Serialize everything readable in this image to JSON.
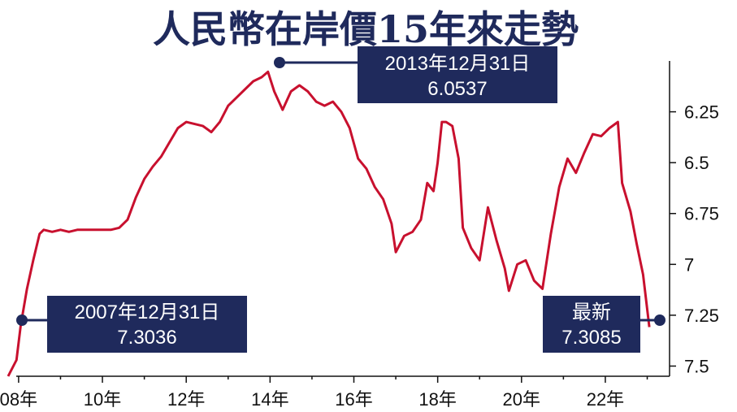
{
  "chart_data": {
    "type": "line",
    "title": "人民幣在岸價15年來走勢",
    "y_axis": {
      "ticks": [
        6.25,
        6.5,
        6.75,
        7,
        7.25,
        7.5
      ],
      "tick_labels": [
        "6.25",
        "6.5",
        "6.75",
        "7",
        "7.25",
        "7.5"
      ],
      "inverted": true,
      "range": [
        6.0,
        7.55
      ],
      "position": "right"
    },
    "x_axis": {
      "tick_labels": [
        "08年",
        "10年",
        "12年",
        "14年",
        "16年",
        "18年",
        "20年",
        "22年"
      ],
      "range": [
        2007.75,
        2023.3
      ]
    },
    "series": [
      {
        "color": "#c8102e",
        "points": [
          [
            2007.75,
            7.55
          ],
          [
            2007.95,
            7.47
          ],
          [
            2008.05,
            7.3
          ],
          [
            2008.2,
            7.12
          ],
          [
            2008.35,
            6.98
          ],
          [
            2008.5,
            6.85
          ],
          [
            2008.6,
            6.83
          ],
          [
            2008.8,
            6.84
          ],
          [
            2009.0,
            6.83
          ],
          [
            2009.2,
            6.84
          ],
          [
            2009.4,
            6.83
          ],
          [
            2009.6,
            6.83
          ],
          [
            2009.8,
            6.83
          ],
          [
            2010.0,
            6.83
          ],
          [
            2010.2,
            6.83
          ],
          [
            2010.4,
            6.82
          ],
          [
            2010.6,
            6.78
          ],
          [
            2010.8,
            6.67
          ],
          [
            2011.0,
            6.58
          ],
          [
            2011.2,
            6.52
          ],
          [
            2011.4,
            6.47
          ],
          [
            2011.6,
            6.4
          ],
          [
            2011.8,
            6.33
          ],
          [
            2012.0,
            6.3
          ],
          [
            2012.2,
            6.31
          ],
          [
            2012.4,
            6.32
          ],
          [
            2012.6,
            6.35
          ],
          [
            2012.8,
            6.3
          ],
          [
            2013.0,
            6.22
          ],
          [
            2013.2,
            6.18
          ],
          [
            2013.4,
            6.14
          ],
          [
            2013.6,
            6.1
          ],
          [
            2013.8,
            6.08
          ],
          [
            2013.95,
            6.0537
          ],
          [
            2014.1,
            6.15
          ],
          [
            2014.3,
            6.24
          ],
          [
            2014.5,
            6.15
          ],
          [
            2014.7,
            6.12
          ],
          [
            2014.9,
            6.15
          ],
          [
            2015.1,
            6.2
          ],
          [
            2015.3,
            6.22
          ],
          [
            2015.5,
            6.2
          ],
          [
            2015.7,
            6.25
          ],
          [
            2015.9,
            6.33
          ],
          [
            2016.1,
            6.48
          ],
          [
            2016.3,
            6.53
          ],
          [
            2016.5,
            6.62
          ],
          [
            2016.7,
            6.68
          ],
          [
            2016.9,
            6.8
          ],
          [
            2017.0,
            6.94
          ],
          [
            2017.2,
            6.86
          ],
          [
            2017.4,
            6.84
          ],
          [
            2017.6,
            6.78
          ],
          [
            2017.75,
            6.6
          ],
          [
            2017.9,
            6.64
          ],
          [
            2018.0,
            6.5
          ],
          [
            2018.1,
            6.3
          ],
          [
            2018.2,
            6.3
          ],
          [
            2018.35,
            6.32
          ],
          [
            2018.5,
            6.48
          ],
          [
            2018.6,
            6.82
          ],
          [
            2018.8,
            6.92
          ],
          [
            2019.0,
            6.98
          ],
          [
            2019.2,
            6.72
          ],
          [
            2019.4,
            6.88
          ],
          [
            2019.6,
            7.02
          ],
          [
            2019.7,
            7.13
          ],
          [
            2019.9,
            7.0
          ],
          [
            2020.1,
            6.98
          ],
          [
            2020.3,
            7.08
          ],
          [
            2020.5,
            7.12
          ],
          [
            2020.7,
            6.85
          ],
          [
            2020.9,
            6.62
          ],
          [
            2021.1,
            6.48
          ],
          [
            2021.3,
            6.55
          ],
          [
            2021.5,
            6.45
          ],
          [
            2021.7,
            6.36
          ],
          [
            2021.9,
            6.37
          ],
          [
            2022.1,
            6.33
          ],
          [
            2022.3,
            6.3
          ],
          [
            2022.4,
            6.6
          ],
          [
            2022.6,
            6.74
          ],
          [
            2022.75,
            6.9
          ],
          [
            2022.9,
            7.05
          ],
          [
            2023.05,
            7.3085
          ]
        ]
      }
    ],
    "annotations": [
      {
        "text": "2013年12月31日",
        "value": "6.0537"
      },
      {
        "text": "2007年12月31日",
        "value": "7.3036"
      },
      {
        "text": "最新",
        "value": "7.3085"
      }
    ]
  }
}
